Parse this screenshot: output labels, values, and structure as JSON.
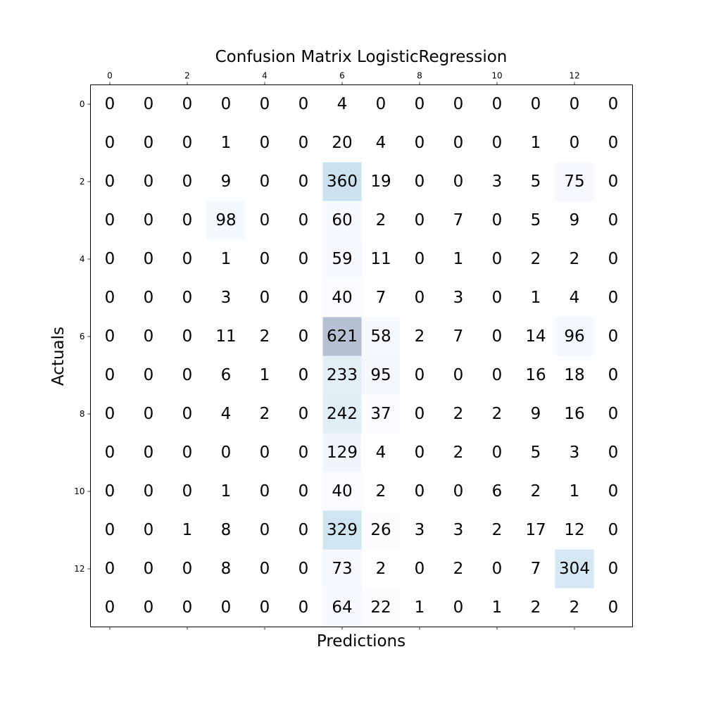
{
  "chart_data": {
    "type": "heatmap",
    "title": "Confusion Matrix LogisticRegression",
    "xlabel": "Predictions",
    "ylabel": "Actuals",
    "x_tick_labels": [
      "0",
      "2",
      "4",
      "6",
      "8",
      "10",
      "12"
    ],
    "y_tick_labels": [
      "0",
      "2",
      "4",
      "6",
      "8",
      "10",
      "12"
    ],
    "x_tick_positions": [
      0,
      2,
      4,
      6,
      8,
      10,
      12
    ],
    "y_tick_positions": [
      0,
      2,
      4,
      6,
      8,
      10,
      12
    ],
    "x_axis_position": "top",
    "colormap": "Blues",
    "color_alpha": 0.3,
    "grid": false,
    "legend": "none",
    "matrix": [
      [
        0,
        0,
        0,
        0,
        0,
        0,
        4,
        0,
        0,
        0,
        0,
        0,
        0,
        0
      ],
      [
        0,
        0,
        0,
        1,
        0,
        0,
        20,
        4,
        0,
        0,
        0,
        1,
        0,
        0
      ],
      [
        0,
        0,
        0,
        9,
        0,
        0,
        360,
        19,
        0,
        0,
        3,
        5,
        75,
        0
      ],
      [
        0,
        0,
        0,
        98,
        0,
        0,
        60,
        2,
        0,
        7,
        0,
        5,
        9,
        0
      ],
      [
        0,
        0,
        0,
        1,
        0,
        0,
        59,
        11,
        0,
        1,
        0,
        2,
        2,
        0
      ],
      [
        0,
        0,
        0,
        3,
        0,
        0,
        40,
        7,
        0,
        3,
        0,
        1,
        4,
        0
      ],
      [
        0,
        0,
        0,
        11,
        2,
        0,
        621,
        58,
        2,
        7,
        0,
        14,
        96,
        0
      ],
      [
        0,
        0,
        0,
        6,
        1,
        0,
        233,
        95,
        0,
        0,
        0,
        16,
        18,
        0
      ],
      [
        0,
        0,
        0,
        4,
        2,
        0,
        242,
        37,
        0,
        2,
        2,
        9,
        16,
        0
      ],
      [
        0,
        0,
        0,
        0,
        0,
        0,
        129,
        4,
        0,
        2,
        0,
        5,
        3,
        0
      ],
      [
        0,
        0,
        0,
        1,
        0,
        0,
        40,
        2,
        0,
        0,
        6,
        2,
        1,
        0
      ],
      [
        0,
        0,
        1,
        8,
        0,
        0,
        329,
        26,
        3,
        3,
        2,
        17,
        12,
        0
      ],
      [
        0,
        0,
        0,
        8,
        0,
        0,
        73,
        2,
        0,
        2,
        0,
        7,
        304,
        0
      ],
      [
        0,
        0,
        0,
        0,
        0,
        0,
        64,
        22,
        1,
        0,
        1,
        2,
        2,
        0
      ]
    ]
  }
}
